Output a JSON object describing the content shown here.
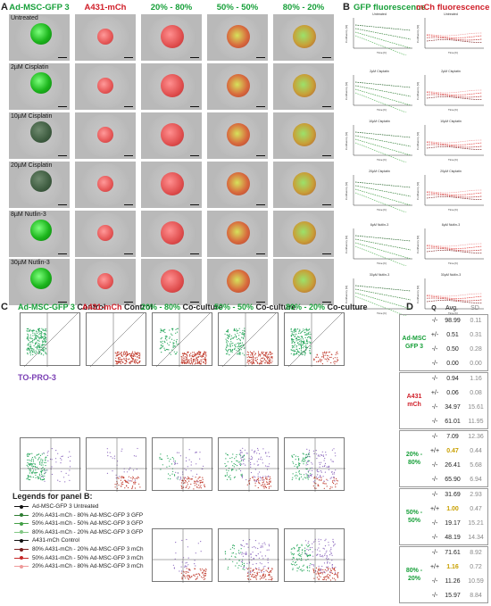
{
  "panel_letters": {
    "a": "A",
    "b": "B",
    "c": "C",
    "d": "D"
  },
  "panel_a": {
    "columns": [
      {
        "label": "Ad-MSC-GFP 3",
        "color": "#18a03a"
      },
      {
        "label": "A431-mCh",
        "color": "#d0202a"
      },
      {
        "label": "20% - 80%",
        "color": "#18a03a"
      },
      {
        "label": "50% - 50%",
        "color": "#18a03a"
      },
      {
        "label": "80% - 20%",
        "color": "#18a03a"
      }
    ],
    "rows": [
      "Untreated",
      "2µM Cisplatin",
      "10µM Cisplatin",
      "20µM Cisplatin",
      "8µM Nutlin-3",
      "30µM Nutlin-3"
    ]
  },
  "panel_b": {
    "gfp_title": "GFP fluorescence",
    "mch_title": "mCh fluorescence",
    "plot_titles": [
      "Untreated",
      "2µM Cisplatin",
      "10µM Cisplatin",
      "20µM Cisplatin",
      "8µM Nutlin-3",
      "30µM Nutlin-3"
    ],
    "ylabel": "Confluency [%]",
    "xlabel": "Time [h]"
  },
  "panel_c": {
    "headers": [
      {
        "text": "Ad-MSC-GFP 3 Control",
        "color": "#18a03a"
      },
      {
        "text": "A431-mCh Control",
        "color": "#d0202a"
      },
      {
        "text": "20% - 80% Co-culture",
        "color": "#18a03a"
      },
      {
        "text": "50% - 50% Co-culture",
        "color": "#18a03a"
      },
      {
        "text": "80% - 20% Co-culture",
        "color": "#18a03a"
      }
    ],
    "topro_label": "TO-PRO-3",
    "legend_title": "Legends for panel B:",
    "legend": [
      {
        "text": "Ad-MSC-GFP 3 Untreated",
        "color": "#111111"
      },
      {
        "text": "20% A431-mCh - 80% Ad-MSC-GFP 3 GFP",
        "color": "#2e7d32"
      },
      {
        "text": "50% A431-mCh - 50% Ad-MSC-GFP 3 GFP",
        "color": "#43a047"
      },
      {
        "text": "80% A431-mCh - 20% Ad-MSC-GFP 3 GFP",
        "color": "#81c784"
      },
      {
        "text": "A431-mCh Control",
        "color": "#111111"
      },
      {
        "text": "80% A431-mCh - 20% Ad-MSC-GFP 3 mCh",
        "color": "#7b1f1f"
      },
      {
        "text": "50% A431-mCh - 50% Ad-MSC-GFP 3 mCh",
        "color": "#c62828"
      },
      {
        "text": "20% A431-mCh - 80% Ad-MSC-GFP 3 mCh",
        "color": "#ef9a9a"
      }
    ]
  },
  "panel_d": {
    "headers": {
      "q": "Q",
      "avg": "Avg.",
      "sd": "SD"
    },
    "groups": [
      {
        "label": "Ad-MSC GFP 3",
        "color": "#18a03a",
        "rows": [
          {
            "q": "-/-",
            "avg": "98.99",
            "sd": "0.11"
          },
          {
            "q": "+/-",
            "avg": "0.51",
            "sd": "0.31"
          },
          {
            "q": "-/-",
            "avg": "0.50",
            "sd": "0.28"
          },
          {
            "q": "-/-",
            "avg": "0.00",
            "sd": "0.00"
          }
        ]
      },
      {
        "label": "A431 mCh",
        "color": "#d0202a",
        "rows": [
          {
            "q": "-/-",
            "avg": "0.94",
            "sd": "1.16"
          },
          {
            "q": "+/-",
            "avg": "0.06",
            "sd": "0.08"
          },
          {
            "q": "-/-",
            "avg": "34.97",
            "sd": "15.61"
          },
          {
            "q": "-/-",
            "avg": "61.01",
            "sd": "11.95"
          }
        ]
      },
      {
        "label": "20% - 80%",
        "color": "#18a03a",
        "rows": [
          {
            "q": "-/-",
            "avg": "7.09",
            "sd": "12.36"
          },
          {
            "q": "+/+",
            "avg": "0.47",
            "sd": "0.44",
            "hl": true
          },
          {
            "q": "-/-",
            "avg": "26.41",
            "sd": "5.68"
          },
          {
            "q": "-/-",
            "avg": "65.90",
            "sd": "6.94"
          }
        ]
      },
      {
        "label": "50% - 50%",
        "color": "#18a03a",
        "rows": [
          {
            "q": "-/-",
            "avg": "31.69",
            "sd": "2.93"
          },
          {
            "q": "+/+",
            "avg": "1.00",
            "sd": "0.47",
            "hl": true
          },
          {
            "q": "-/-",
            "avg": "19.17",
            "sd": "15.21"
          },
          {
            "q": "-/-",
            "avg": "48.19",
            "sd": "14.34"
          }
        ]
      },
      {
        "label": "80% - 20%",
        "color": "#18a03a",
        "rows": [
          {
            "q": "-/-",
            "avg": "71.61",
            "sd": "8.92"
          },
          {
            "q": "+/+",
            "avg": "1.16",
            "sd": "0.72",
            "hl": true
          },
          {
            "q": "-/-",
            "avg": "11.26",
            "sd": "10.59"
          },
          {
            "q": "-/-",
            "avg": "15.97",
            "sd": "8.84"
          }
        ]
      }
    ]
  }
}
